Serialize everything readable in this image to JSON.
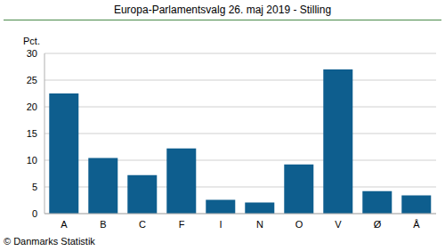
{
  "chart_data": {
    "type": "bar",
    "title": "Europa-Parlamentsvalg 26. maj 2019 - Stilling",
    "y_label": "Pct.",
    "annotations": [
      "© Danmarks Statistik"
    ],
    "categories": [
      "A",
      "B",
      "C",
      "F",
      "I",
      "N",
      "O",
      "V",
      "Ø",
      "Å"
    ],
    "values": [
      22.5,
      10.4,
      7.2,
      12.2,
      2.6,
      2.1,
      9.2,
      27.0,
      4.2,
      3.4
    ],
    "color": "#0e5e8e",
    "ylim": [
      0,
      30
    ],
    "yticks": [
      0,
      5,
      10,
      15,
      20,
      25,
      30
    ],
    "grid": true
  }
}
